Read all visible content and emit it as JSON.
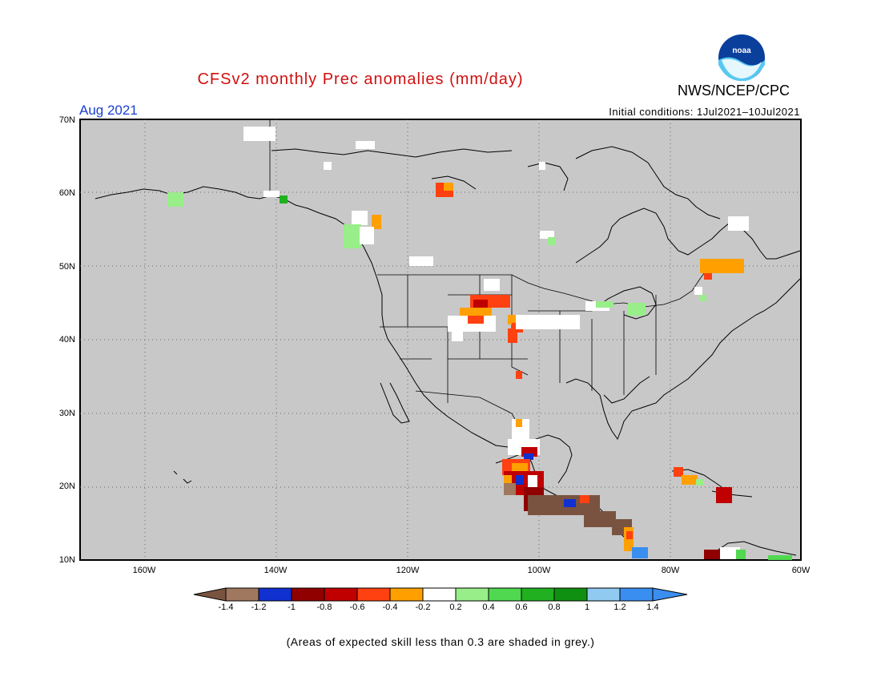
{
  "header": {
    "title": "CFSv2 monthly Prec anomalies (mm/day)",
    "agency": "NWS/NCEP/CPC",
    "logo_text": "noaa",
    "month": "Aug 2021",
    "initial_conditions": "Initial conditions: 1Jul2021–10Jul2021"
  },
  "map": {
    "lon_range": [
      -170,
      -60
    ],
    "lat_range": [
      10,
      70
    ],
    "lat_labels": [
      "70N",
      "60N",
      "50N",
      "40N",
      "30N",
      "20N",
      "10N"
    ],
    "lon_labels": [
      "160W",
      "140W",
      "120W",
      "100W",
      "80W",
      "60W"
    ],
    "background_color": "#c8c8c8",
    "grid": "dotted"
  },
  "colorbar": {
    "labels": [
      "-1.4",
      "-1.2",
      "-1",
      "-0.8",
      "-0.6",
      "-0.4",
      "-0.2",
      "0.2",
      "0.4",
      "0.6",
      "0.8",
      "1",
      "1.2",
      "1.4"
    ],
    "colors": [
      "#7a5340",
      "#a07860",
      "#1030d0",
      "#900000",
      "#c00000",
      "#ff4010",
      "#ffa000",
      "#ffffff",
      "#98ee88",
      "#50d850",
      "#20b020",
      "#109010",
      "#90caf0",
      "#3a8ef0",
      "#3a8ef0"
    ]
  },
  "footnote": "(Areas of expected skill less than 0.3 are shaded in grey.)"
}
